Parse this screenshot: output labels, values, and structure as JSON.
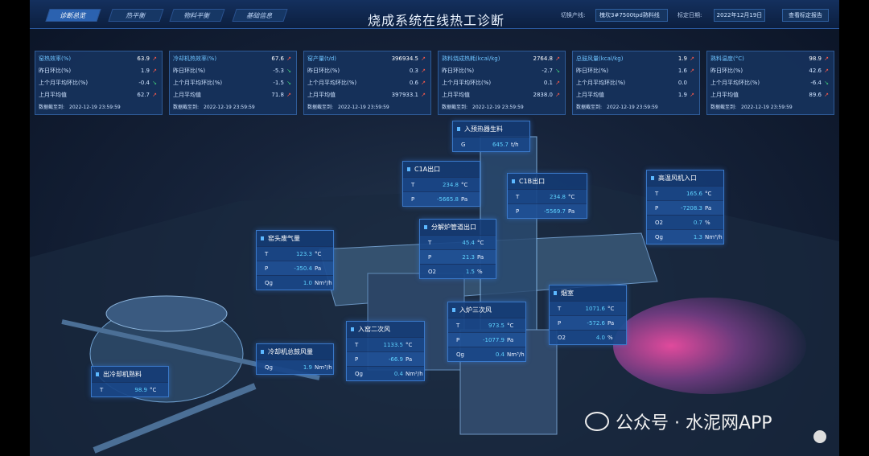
{
  "header": {
    "tabs": [
      "诊断总览",
      "热平衡",
      "物料平衡",
      "基础信息"
    ],
    "title": "烧成系统在线热工诊断",
    "line_label": "切换产线:",
    "line_value": "槐坎3#7500tpd熟料线",
    "date_label": "标定日期:",
    "date_value": "2022年12月19日",
    "report_button": "查看标定报告"
  },
  "kpi_cards": [
    {
      "title": "窑热效率(%)",
      "value": "63.9",
      "rows": [
        {
          "label": "昨日环比(%)",
          "value": "1.9"
        },
        {
          "label": "上个月平均环比(%)",
          "value": "-0.4"
        },
        {
          "label": "上月平均值",
          "value": "62.7"
        }
      ],
      "footer_label": "数据截至到:",
      "footer_time": "2022-12-19 23:59:59"
    },
    {
      "title": "冷却机热效率(%)",
      "value": "67.6",
      "rows": [
        {
          "label": "昨日环比(%)",
          "value": "-5.3"
        },
        {
          "label": "上个月平均环比(%)",
          "value": "-1.5"
        },
        {
          "label": "上月平均值",
          "value": "71.8"
        }
      ],
      "footer_label": "数据截至到:",
      "footer_time": "2022-12-19 23:59:59"
    },
    {
      "title": "窑产量(t/d)",
      "value": "396934.5",
      "rows": [
        {
          "label": "昨日环比(%)",
          "value": "0.3"
        },
        {
          "label": "上个月平均环比(%)",
          "value": "0.6"
        },
        {
          "label": "上月平均值",
          "value": "397933.1"
        }
      ],
      "footer_label": "数据截至到:",
      "footer_time": "2022-12-19 23:59:59"
    },
    {
      "title": "熟料烧成热耗(kcal/kg)",
      "value": "2764.8",
      "rows": [
        {
          "label": "昨日环比(%)",
          "value": "-2.7"
        },
        {
          "label": "上个月平均环比(%)",
          "value": "0.1"
        },
        {
          "label": "上月平均值",
          "value": "2838.0"
        }
      ],
      "footer_label": "数据截至到:",
      "footer_time": "2022-12-19 23:59:59"
    },
    {
      "title": "总鼓风量(kcal/kg)",
      "value": "1.9",
      "rows": [
        {
          "label": "昨日环比(%)",
          "value": "1.6"
        },
        {
          "label": "上个月平均环比(%)",
          "value": "0.0"
        },
        {
          "label": "上月平均值",
          "value": "1.9"
        }
      ],
      "footer_label": "数据截至到:",
      "footer_time": "2022-12-19 23:59:59"
    },
    {
      "title": "熟料温度(°C)",
      "value": "98.9",
      "rows": [
        {
          "label": "昨日环比(%)",
          "value": "42.6"
        },
        {
          "label": "上个月平均环比(%)",
          "value": "-6.4"
        },
        {
          "label": "上月平均值",
          "value": "89.6"
        }
      ],
      "footer_label": "数据截至到:",
      "footer_time": "2022-12-19 23:59:59"
    }
  ],
  "sensors": [
    {
      "title": "入预热器生料",
      "rows": [
        {
          "label": "G",
          "value": "645.7",
          "unit": "t/h"
        }
      ]
    },
    {
      "title": "C1A出口",
      "rows": [
        {
          "label": "T",
          "value": "234.8",
          "unit": "°C"
        },
        {
          "label": "P",
          "value": "-5665.8",
          "unit": "Pa"
        }
      ]
    },
    {
      "title": "C1B出口",
      "rows": [
        {
          "label": "T",
          "value": "234.8",
          "unit": "°C"
        },
        {
          "label": "P",
          "value": "-5569.7",
          "unit": "Pa"
        }
      ]
    },
    {
      "title": "高温风机入口",
      "rows": [
        {
          "label": "T",
          "value": "165.6",
          "unit": "°C"
        },
        {
          "label": "P",
          "value": "-7208.3",
          "unit": "Pa"
        },
        {
          "label": "O2",
          "value": "0.7",
          "unit": "%"
        },
        {
          "label": "Qg",
          "value": "1.3",
          "unit": "Nm³/h"
        }
      ]
    },
    {
      "title": "分解炉管道出口",
      "rows": [
        {
          "label": "T",
          "value": "45.4",
          "unit": "°C"
        },
        {
          "label": "P",
          "value": "21.3",
          "unit": "Pa"
        },
        {
          "label": "O2",
          "value": "1.5",
          "unit": "%"
        }
      ]
    },
    {
      "title": "窑头废气量",
      "rows": [
        {
          "label": "T",
          "value": "123.3",
          "unit": "°C"
        },
        {
          "label": "P",
          "value": "-350.4",
          "unit": "Pa"
        },
        {
          "label": "Qg",
          "value": "1.0",
          "unit": "Nm³/h"
        }
      ]
    },
    {
      "title": "烟室",
      "rows": [
        {
          "label": "T",
          "value": "1071.6",
          "unit": "°C"
        },
        {
          "label": "P",
          "value": "-572.6",
          "unit": "Pa"
        },
        {
          "label": "O2",
          "value": "4.0",
          "unit": "%"
        }
      ]
    },
    {
      "title": "入炉三次风",
      "rows": [
        {
          "label": "T",
          "value": "973.5",
          "unit": "°C"
        },
        {
          "label": "P",
          "value": "-1077.9",
          "unit": "Pa"
        },
        {
          "label": "Qg",
          "value": "0.4",
          "unit": "Nm³/h"
        }
      ]
    },
    {
      "title": "入窑二次风",
      "rows": [
        {
          "label": "T",
          "value": "1133.5",
          "unit": "°C"
        },
        {
          "label": "P",
          "value": "-66.9",
          "unit": "Pa"
        },
        {
          "label": "Qg",
          "value": "0.4",
          "unit": "Nm³/h"
        }
      ]
    },
    {
      "title": "冷却机总鼓风量",
      "rows": [
        {
          "label": "Qg",
          "value": "1.9",
          "unit": "Nm³/h"
        }
      ]
    },
    {
      "title": "出冷却机熟料",
      "rows": [
        {
          "label": "T",
          "value": "98.9",
          "unit": "°C"
        }
      ]
    }
  ],
  "watermark": "公众号 · 水泥网APP"
}
